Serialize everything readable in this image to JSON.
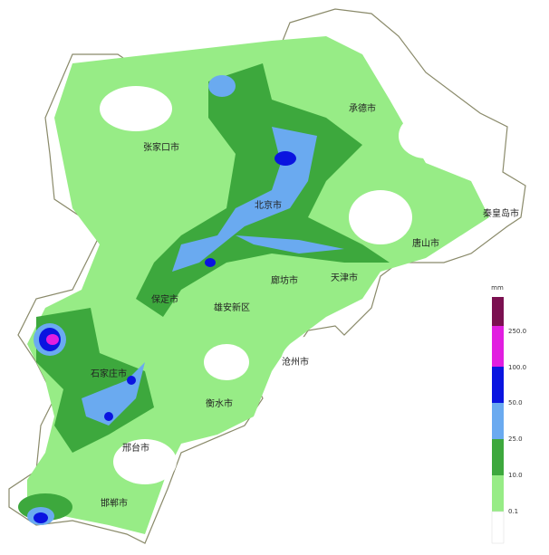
{
  "map": {
    "cities": [
      "承德市",
      "张家口市",
      "北京市",
      "秦皇岛市",
      "唐山市",
      "天津市",
      "廊坊市",
      "保定市",
      "雄安新区",
      "沧州市",
      "石家庄市",
      "衡水市",
      "邢台市",
      "邯郸市"
    ],
    "legend": {
      "unit": "mm",
      "labels": [
        "250.0",
        "100.0",
        "50.0",
        "25.0",
        "10.0",
        "0.1"
      ]
    }
  }
}
